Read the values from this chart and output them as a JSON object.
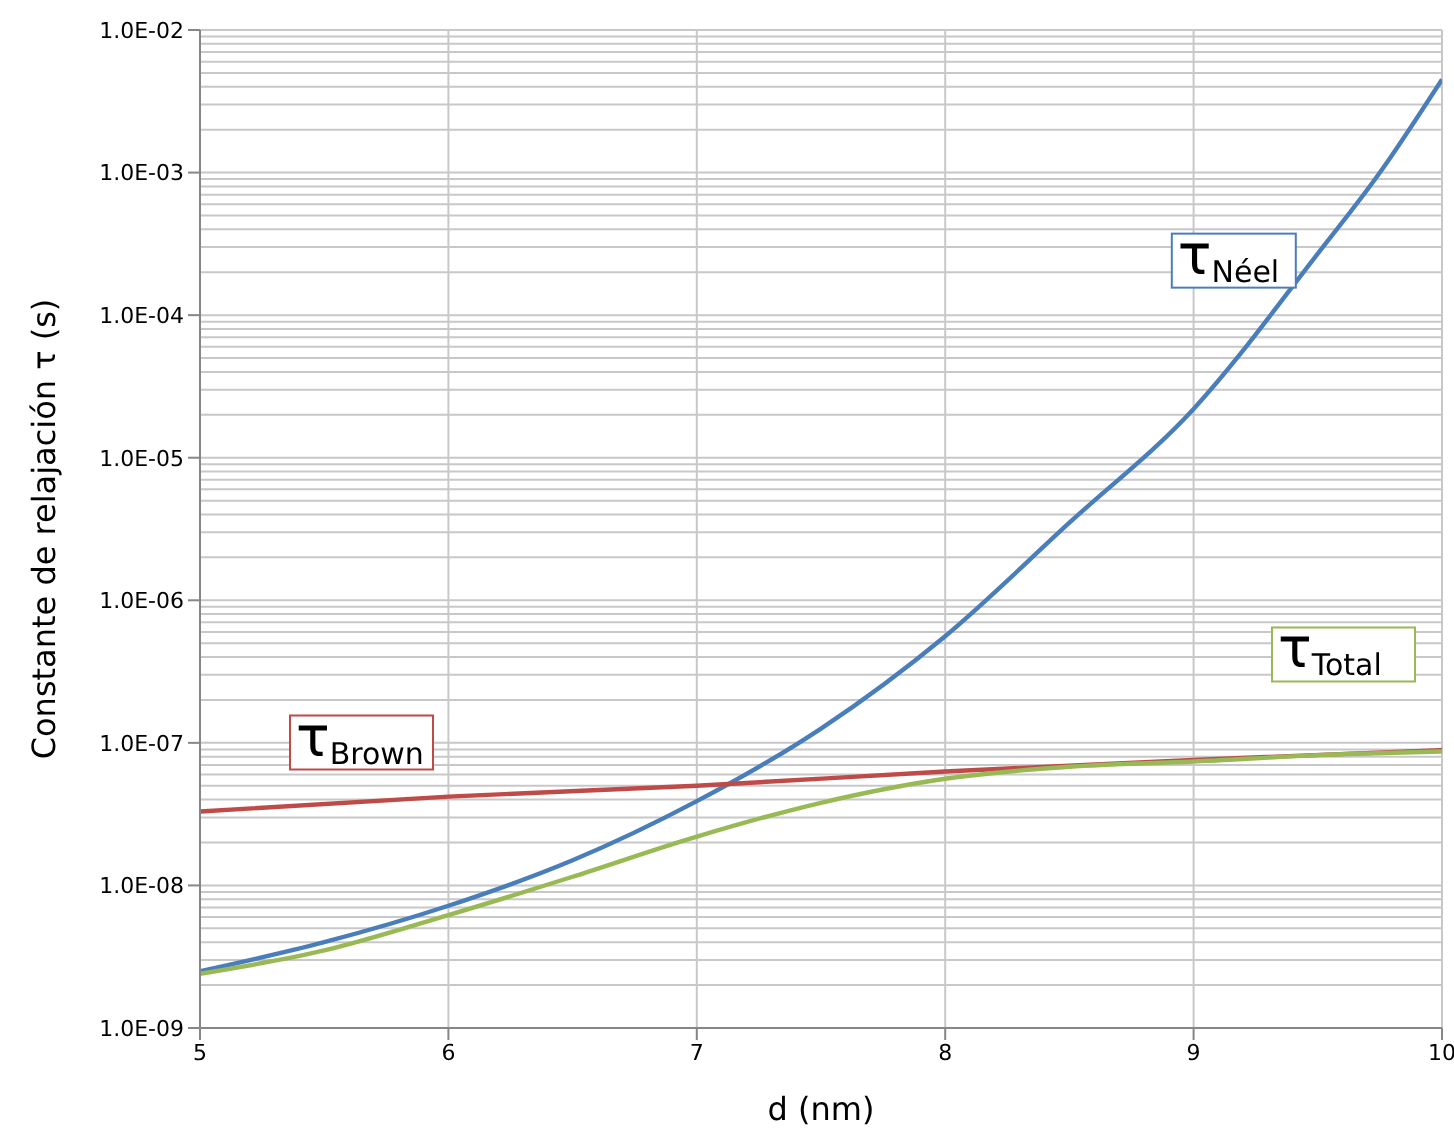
{
  "chart_data": {
    "type": "line",
    "xlabel": "d (nm)",
    "ylabel": "Constante de relajación τ (s)",
    "log": "y",
    "grid": true,
    "marker": "none",
    "line_style": "solid",
    "legend": false,
    "xlim": [
      5,
      10
    ],
    "xticks": [
      5,
      6,
      7,
      8,
      9,
      10
    ],
    "ylim": [
      1e-09,
      0.01
    ],
    "yticks": [
      {
        "value": 1e-09,
        "label": "1.0E-09"
      },
      {
        "value": 1e-08,
        "label": "1.0E-08"
      },
      {
        "value": 1e-07,
        "label": "1.0E-07"
      },
      {
        "value": 1e-06,
        "label": "1.0E-06"
      },
      {
        "value": 1e-05,
        "label": "1.0E-05"
      },
      {
        "value": 0.0001,
        "label": "1.0E-04"
      },
      {
        "value": 0.001,
        "label": "1.0E-03"
      },
      {
        "value": 0.01,
        "label": "1.0E-02"
      }
    ],
    "series": [
      {
        "name": "τ$_{Néel}$",
        "color": "#4a7ebb",
        "x": [
          5,
          5.5,
          6,
          6.5,
          7,
          7.5,
          8,
          8.5,
          9,
          9.5,
          9.75,
          10
        ],
        "values": [
          2.5e-09,
          4e-09,
          7.2e-09,
          1.5e-08,
          3.9e-08,
          1.26e-07,
          5.6e-07,
          3.5e-06,
          2.2e-05,
          0.00027,
          0.001,
          0.0045
        ]
      },
      {
        "name": "τ$_{Brown}$",
        "color": "#be4b48",
        "x": [
          5,
          6,
          7,
          8,
          9,
          10
        ],
        "values": [
          3.3e-08,
          4.2e-08,
          5e-08,
          6.3e-08,
          7.6e-08,
          8.9e-08
        ]
      },
      {
        "name": "τ$_{Total}$",
        "color": "#98b954",
        "x": [
          5,
          5.5,
          6,
          6.5,
          7,
          7.5,
          8,
          8.5,
          9,
          9.5,
          10
        ],
        "values": [
          2.4e-09,
          3.5e-09,
          6.2e-09,
          1.15e-08,
          2.2e-08,
          3.8e-08,
          5.6e-08,
          6.8e-08,
          7.4e-08,
          8.2e-08,
          8.7e-08
        ]
      }
    ]
  }
}
